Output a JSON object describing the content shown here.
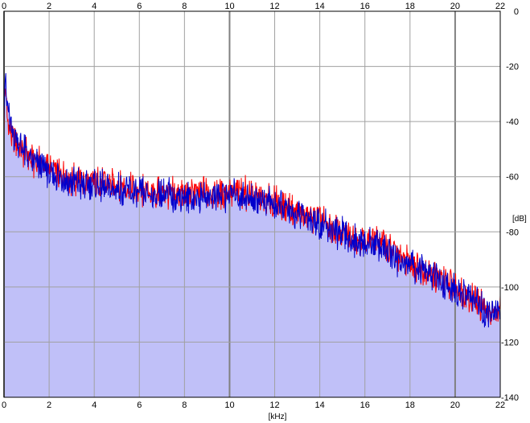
{
  "chart_data": {
    "type": "area",
    "title": "",
    "xlabel": "[kHz]",
    "ylabel": "[dB]",
    "xlim": [
      0,
      22
    ],
    "ylim": [
      -140,
      0
    ],
    "x_ticks": [
      0,
      2,
      4,
      6,
      8,
      10,
      12,
      14,
      16,
      18,
      20,
      22
    ],
    "y_ticks": [
      0,
      -20,
      -40,
      -60,
      -80,
      -100,
      -120,
      -140
    ],
    "y_tick_labels": [
      "0",
      "-20",
      "-40",
      "-60",
      "-80",
      "-100",
      "-120",
      "-140"
    ],
    "grid": true,
    "colors": {
      "background": "#ffffff",
      "grid": "#a0a0a0",
      "grid_major": "#808080",
      "fill": "#c0c0f8",
      "channel_red": "#ff0000",
      "channel_blue": "#0000cc",
      "frame": "#000000"
    },
    "series": [
      {
        "color": "#ff0000",
        "x": [
          0,
          0.05,
          0.1,
          0.2,
          0.4,
          0.6,
          0.8,
          1.0,
          1.2,
          1.5,
          2.0,
          2.5,
          3.0,
          3.5,
          4.0,
          4.5,
          5.0,
          5.5,
          6.0,
          6.5,
          7.0,
          7.5,
          8.0,
          8.5,
          9.0,
          9.5,
          10.0,
          10.5,
          11.0,
          11.5,
          12.0,
          12.5,
          13.0,
          13.5,
          14.0,
          14.5,
          15.0,
          15.5,
          16.0,
          16.5,
          17.0,
          17.5,
          18.0,
          18.5,
          19.0,
          19.5,
          20.0,
          20.5,
          21.0,
          21.5,
          22.0
        ],
        "values": [
          -42,
          -24,
          -35,
          -40,
          -46,
          -48,
          -50,
          -52,
          -54,
          -55,
          -57,
          -59,
          -61,
          -62,
          -62,
          -63,
          -63,
          -64,
          -65,
          -66,
          -65,
          -66,
          -67,
          -66,
          -66,
          -66,
          -66,
          -66,
          -66,
          -68,
          -69,
          -71,
          -73,
          -74,
          -76,
          -78,
          -80,
          -82,
          -84,
          -82,
          -86,
          -89,
          -91,
          -93,
          -95,
          -98,
          -100,
          -102,
          -105,
          -110,
          -108
        ]
      },
      {
        "color": "#0000cc",
        "x": [
          0,
          0.05,
          0.1,
          0.2,
          0.4,
          0.6,
          0.8,
          1.0,
          1.2,
          1.5,
          2.0,
          2.5,
          3.0,
          3.5,
          4.0,
          4.5,
          5.0,
          5.5,
          6.0,
          6.5,
          7.0,
          7.5,
          8.0,
          8.5,
          9.0,
          9.5,
          10.0,
          10.5,
          11.0,
          11.5,
          12.0,
          12.5,
          13.0,
          13.5,
          14.0,
          14.5,
          15.0,
          15.5,
          16.0,
          16.5,
          17.0,
          17.5,
          18.0,
          18.5,
          19.0,
          19.5,
          20.0,
          20.5,
          21.0,
          21.5,
          22.0
        ],
        "values": [
          -36,
          -20,
          -32,
          -38,
          -44,
          -47,
          -50,
          -52,
          -54,
          -56,
          -58,
          -60,
          -62,
          -63,
          -63,
          -64,
          -64,
          -65,
          -66,
          -67,
          -66,
          -67,
          -68,
          -67,
          -67,
          -67,
          -67,
          -67,
          -67,
          -69,
          -70,
          -72,
          -74,
          -75,
          -77,
          -79,
          -81,
          -83,
          -85,
          -84,
          -87,
          -90,
          -92,
          -94,
          -96,
          -99,
          -101,
          -103,
          -106,
          -110,
          -109
        ]
      }
    ]
  }
}
